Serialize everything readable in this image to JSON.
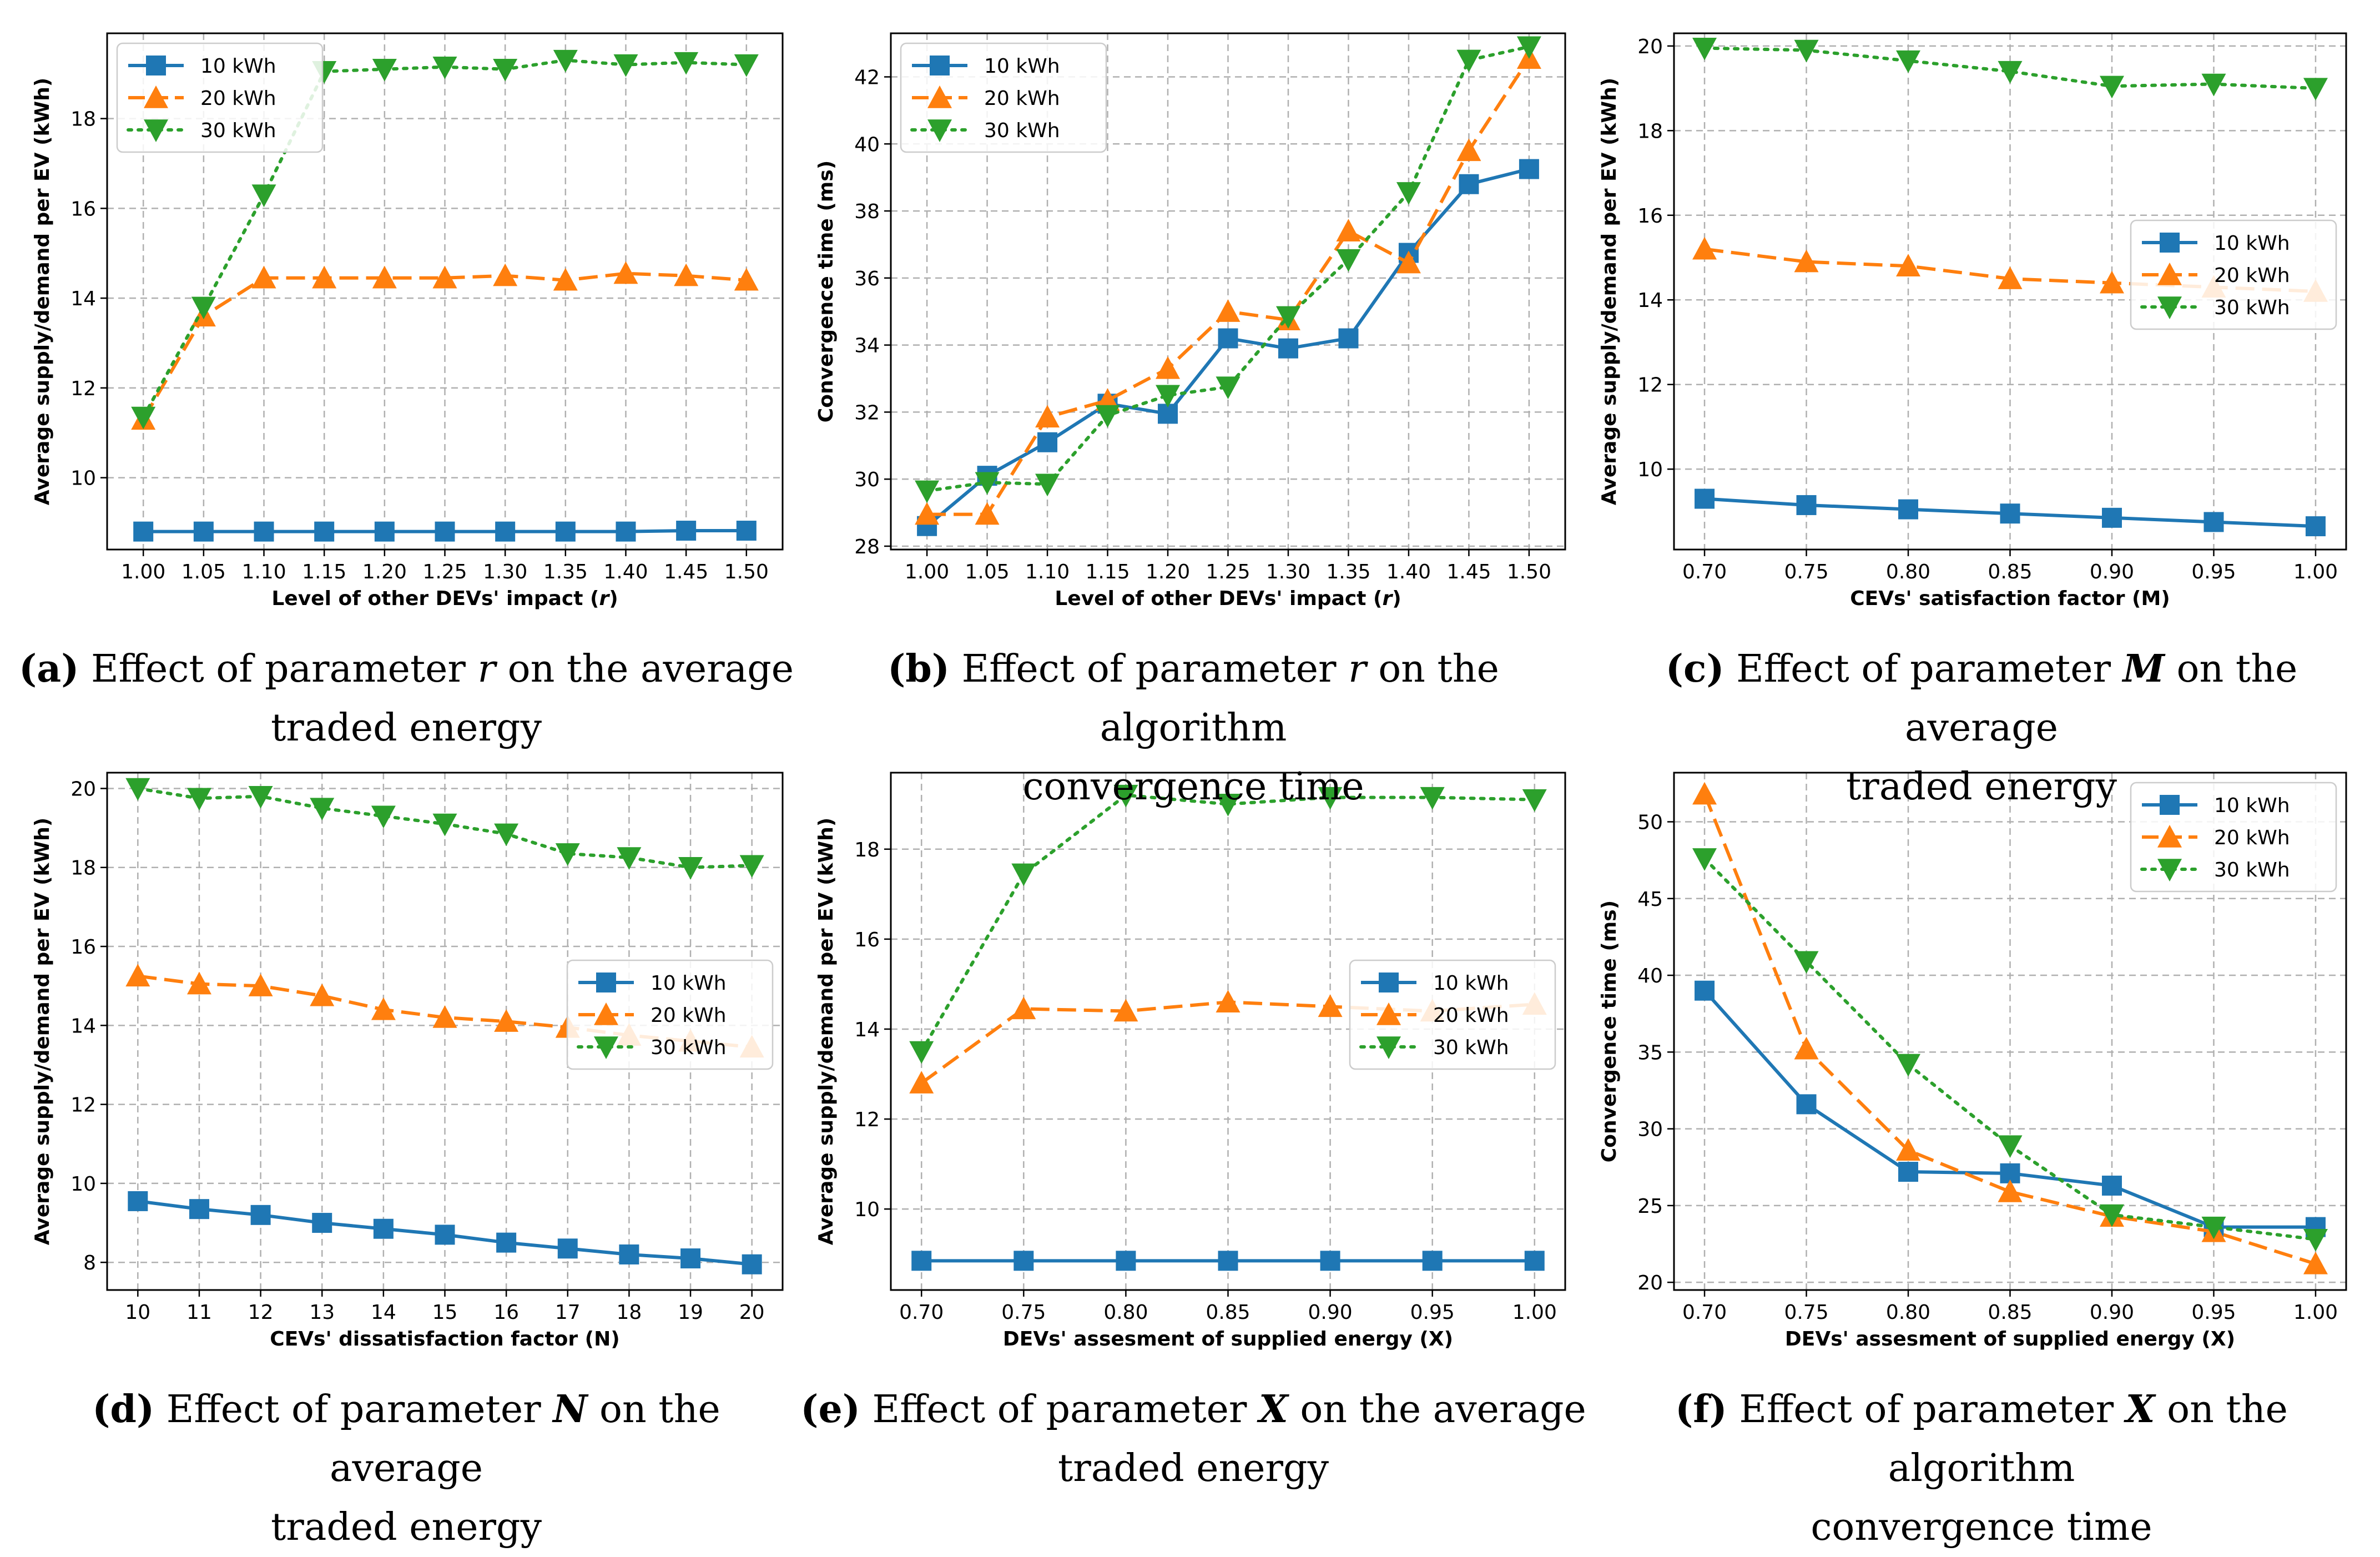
{
  "colors": {
    "s10": "#1f77b4",
    "s20": "#ff7f0e",
    "s30": "#2ca02c",
    "grid": "#b0b0b0",
    "axis": "#000000"
  },
  "charts": [
    {
      "type": "line",
      "xlabel_main": "Level of other DEVs' impact (",
      "xlabel_var": "r",
      "xlabel_end": ")",
      "ylabel": "Average supply/demand per EV (kWh)",
      "x": [
        1.0,
        1.05,
        1.1,
        1.15,
        1.2,
        1.25,
        1.3,
        1.35,
        1.4,
        1.45,
        1.5
      ],
      "xticks": [
        "1.00",
        "1.05",
        "1.10",
        "1.15",
        "1.20",
        "1.25",
        "1.30",
        "1.35",
        "1.40",
        "1.45",
        "1.50"
      ],
      "xlim": [
        0.97,
        1.53
      ],
      "yticks": [
        10,
        12,
        14,
        16,
        18
      ],
      "ylim": [
        8.4,
        19.9
      ],
      "legend": "top-left",
      "series": [
        {
          "name": "10 kWh",
          "values": [
            8.8,
            8.8,
            8.8,
            8.8,
            8.8,
            8.8,
            8.8,
            8.8,
            8.8,
            8.82,
            8.82
          ]
        },
        {
          "name": "20 kWh",
          "values": [
            11.3,
            13.6,
            14.45,
            14.45,
            14.45,
            14.45,
            14.5,
            14.4,
            14.55,
            14.5,
            14.4
          ]
        },
        {
          "name": "30 kWh",
          "values": [
            11.35,
            13.8,
            16.3,
            19.05,
            19.1,
            19.15,
            19.1,
            19.3,
            19.2,
            19.25,
            19.2
          ]
        }
      ],
      "caption": {
        "letter": "(a)",
        "before": " Effect of parameter ",
        "param": "r",
        "after": " on the average",
        "line2": "traded energy"
      }
    },
    {
      "type": "line",
      "xlabel_main": "Level of other DEVs' impact (",
      "xlabel_var": "r",
      "xlabel_end": ")",
      "ylabel": "Convergence time (ms)",
      "x": [
        1.0,
        1.05,
        1.1,
        1.15,
        1.2,
        1.25,
        1.3,
        1.35,
        1.4,
        1.45,
        1.5
      ],
      "xticks": [
        "1.00",
        "1.05",
        "1.10",
        "1.15",
        "1.20",
        "1.25",
        "1.30",
        "1.35",
        "1.40",
        "1.45",
        "1.50"
      ],
      "xlim": [
        0.97,
        1.53
      ],
      "yticks": [
        28,
        30,
        32,
        34,
        36,
        38,
        40,
        42
      ],
      "ylim": [
        27.9,
        43.3
      ],
      "legend": "top-left",
      "series": [
        {
          "name": "10 kWh",
          "values": [
            28.6,
            30.1,
            31.1,
            32.25,
            31.95,
            34.2,
            33.9,
            34.2,
            36.75,
            38.8,
            39.25
          ]
        },
        {
          "name": "20 kWh",
          "values": [
            28.95,
            28.95,
            31.85,
            32.35,
            33.3,
            35.0,
            34.75,
            37.4,
            36.45,
            39.8,
            42.55
          ]
        },
        {
          "name": "30 kWh",
          "values": [
            29.65,
            29.9,
            29.85,
            31.9,
            32.5,
            32.75,
            34.85,
            36.55,
            38.55,
            42.5,
            42.9
          ]
        }
      ],
      "caption": {
        "letter": "(b)",
        "before": " Effect of parameter ",
        "param": "r",
        "after": " on the algorithm",
        "line2": "convergence time"
      }
    },
    {
      "type": "line",
      "xlabel_main": "CEVs' satisfaction factor (M)",
      "xlabel_var": "",
      "xlabel_end": "",
      "ylabel": "Average supply/demand per EV (kWh)",
      "x": [
        0.7,
        0.75,
        0.8,
        0.85,
        0.9,
        0.95,
        1.0
      ],
      "xticks": [
        "0.70",
        "0.75",
        "0.80",
        "0.85",
        "0.90",
        "0.95",
        "1.00"
      ],
      "xlim": [
        0.685,
        1.015
      ],
      "yticks": [
        10,
        12,
        14,
        16,
        18,
        20
      ],
      "ylim": [
        8.1,
        20.3
      ],
      "legend": "center-right",
      "series": [
        {
          "name": "10 kWh",
          "values": [
            9.3,
            9.15,
            9.05,
            8.95,
            8.85,
            8.75,
            8.65
          ]
        },
        {
          "name": "20 kWh",
          "values": [
            15.2,
            14.9,
            14.8,
            14.5,
            14.4,
            14.3,
            14.2
          ]
        },
        {
          "name": "30 kWh",
          "values": [
            19.95,
            19.9,
            19.65,
            19.4,
            19.05,
            19.1,
            19.0
          ]
        }
      ],
      "caption": {
        "letter": "(c)",
        "before": " Effect of parameter ",
        "param": "M",
        "after": " on the average",
        "line2": "traded energy"
      }
    },
    {
      "type": "line",
      "xlabel_main": "CEVs' dissatisfaction factor (N)",
      "xlabel_var": "",
      "xlabel_end": "",
      "ylabel": "Average supply/demand per EV (kWh)",
      "x": [
        10,
        11,
        12,
        13,
        14,
        15,
        16,
        17,
        18,
        19,
        20
      ],
      "xticks": [
        "10",
        "11",
        "12",
        "13",
        "14",
        "15",
        "16",
        "17",
        "18",
        "19",
        "20"
      ],
      "xlim": [
        9.5,
        20.5
      ],
      "yticks": [
        8,
        10,
        12,
        14,
        16,
        18,
        20
      ],
      "ylim": [
        7.3,
        20.4
      ],
      "legend": "center-right",
      "series": [
        {
          "name": "10 kWh",
          "values": [
            9.55,
            9.35,
            9.2,
            9.0,
            8.85,
            8.7,
            8.5,
            8.35,
            8.2,
            8.1,
            7.95
          ]
        },
        {
          "name": "20 kWh",
          "values": [
            15.25,
            15.05,
            15.0,
            14.75,
            14.4,
            14.2,
            14.1,
            13.95,
            13.75,
            13.6,
            13.45
          ]
        },
        {
          "name": "30 kWh",
          "values": [
            20.0,
            19.75,
            19.8,
            19.5,
            19.3,
            19.1,
            18.85,
            18.35,
            18.25,
            18.0,
            18.05
          ]
        }
      ],
      "caption": {
        "letter": "(d)",
        "before": " Effect of parameter ",
        "param": "N",
        "after": " on the average",
        "line2": "traded energy"
      }
    },
    {
      "type": "line",
      "xlabel_main": "DEVs' assesment of supplied energy (X)",
      "xlabel_var": "",
      "xlabel_end": "",
      "ylabel": "Average supply/demand per EV (kWh)",
      "x": [
        0.7,
        0.75,
        0.8,
        0.85,
        0.9,
        0.95,
        1.0
      ],
      "xticks": [
        "0.70",
        "0.75",
        "0.80",
        "0.85",
        "0.90",
        "0.95",
        "1.00"
      ],
      "xlim": [
        0.685,
        1.015
      ],
      "yticks": [
        10,
        12,
        14,
        16,
        18
      ],
      "ylim": [
        8.2,
        19.7
      ],
      "legend": "center-right",
      "series": [
        {
          "name": "10 kWh",
          "values": [
            8.85,
            8.85,
            8.85,
            8.85,
            8.85,
            8.85,
            8.85
          ]
        },
        {
          "name": "20 kWh",
          "values": [
            12.8,
            14.45,
            14.4,
            14.6,
            14.5,
            14.4,
            14.55
          ]
        },
        {
          "name": "30 kWh",
          "values": [
            13.5,
            17.45,
            19.2,
            19.0,
            19.15,
            19.15,
            19.1
          ]
        }
      ],
      "caption": {
        "letter": "(e)",
        "before": " Effect of parameter ",
        "param": "X",
        "after": " on the average",
        "line2": "traded energy"
      }
    },
    {
      "type": "line",
      "xlabel_main": "DEVs' assesment of supplied energy (X)",
      "xlabel_var": "",
      "xlabel_end": "",
      "ylabel": "Convergence time (ms)",
      "x": [
        0.7,
        0.75,
        0.8,
        0.85,
        0.9,
        0.95,
        1.0
      ],
      "xticks": [
        "0.70",
        "0.75",
        "0.80",
        "0.85",
        "0.90",
        "0.95",
        "1.00"
      ],
      "xlim": [
        0.685,
        1.015
      ],
      "yticks": [
        20,
        25,
        30,
        35,
        40,
        45,
        50
      ],
      "ylim": [
        19.5,
        53.2
      ],
      "legend": "top-right",
      "series": [
        {
          "name": "10 kWh",
          "values": [
            39.0,
            31.6,
            27.2,
            27.1,
            26.3,
            23.6,
            23.6
          ]
        },
        {
          "name": "20 kWh",
          "values": [
            51.8,
            35.2,
            28.6,
            25.9,
            24.3,
            23.3,
            21.2
          ]
        },
        {
          "name": "30 kWh",
          "values": [
            47.6,
            40.9,
            34.2,
            28.9,
            24.4,
            23.6,
            22.8
          ]
        }
      ],
      "caption": {
        "letter": "(f)",
        "before": " Effect of parameter ",
        "param": "X",
        "after": " on the algorithm",
        "line2": "convergence time"
      }
    }
  ]
}
